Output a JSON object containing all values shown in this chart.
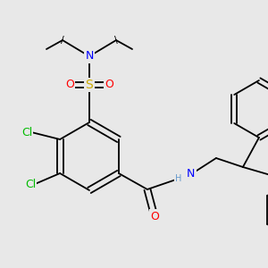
{
  "background_color": "#e8e8e8",
  "atom_colors": {
    "C": "#000000",
    "N": "#0000ff",
    "O": "#ff0000",
    "S": "#ccaa00",
    "Cl": "#00bb00",
    "H": "#6699cc"
  },
  "bond_color": "#000000",
  "bg": "#e8e8e8"
}
